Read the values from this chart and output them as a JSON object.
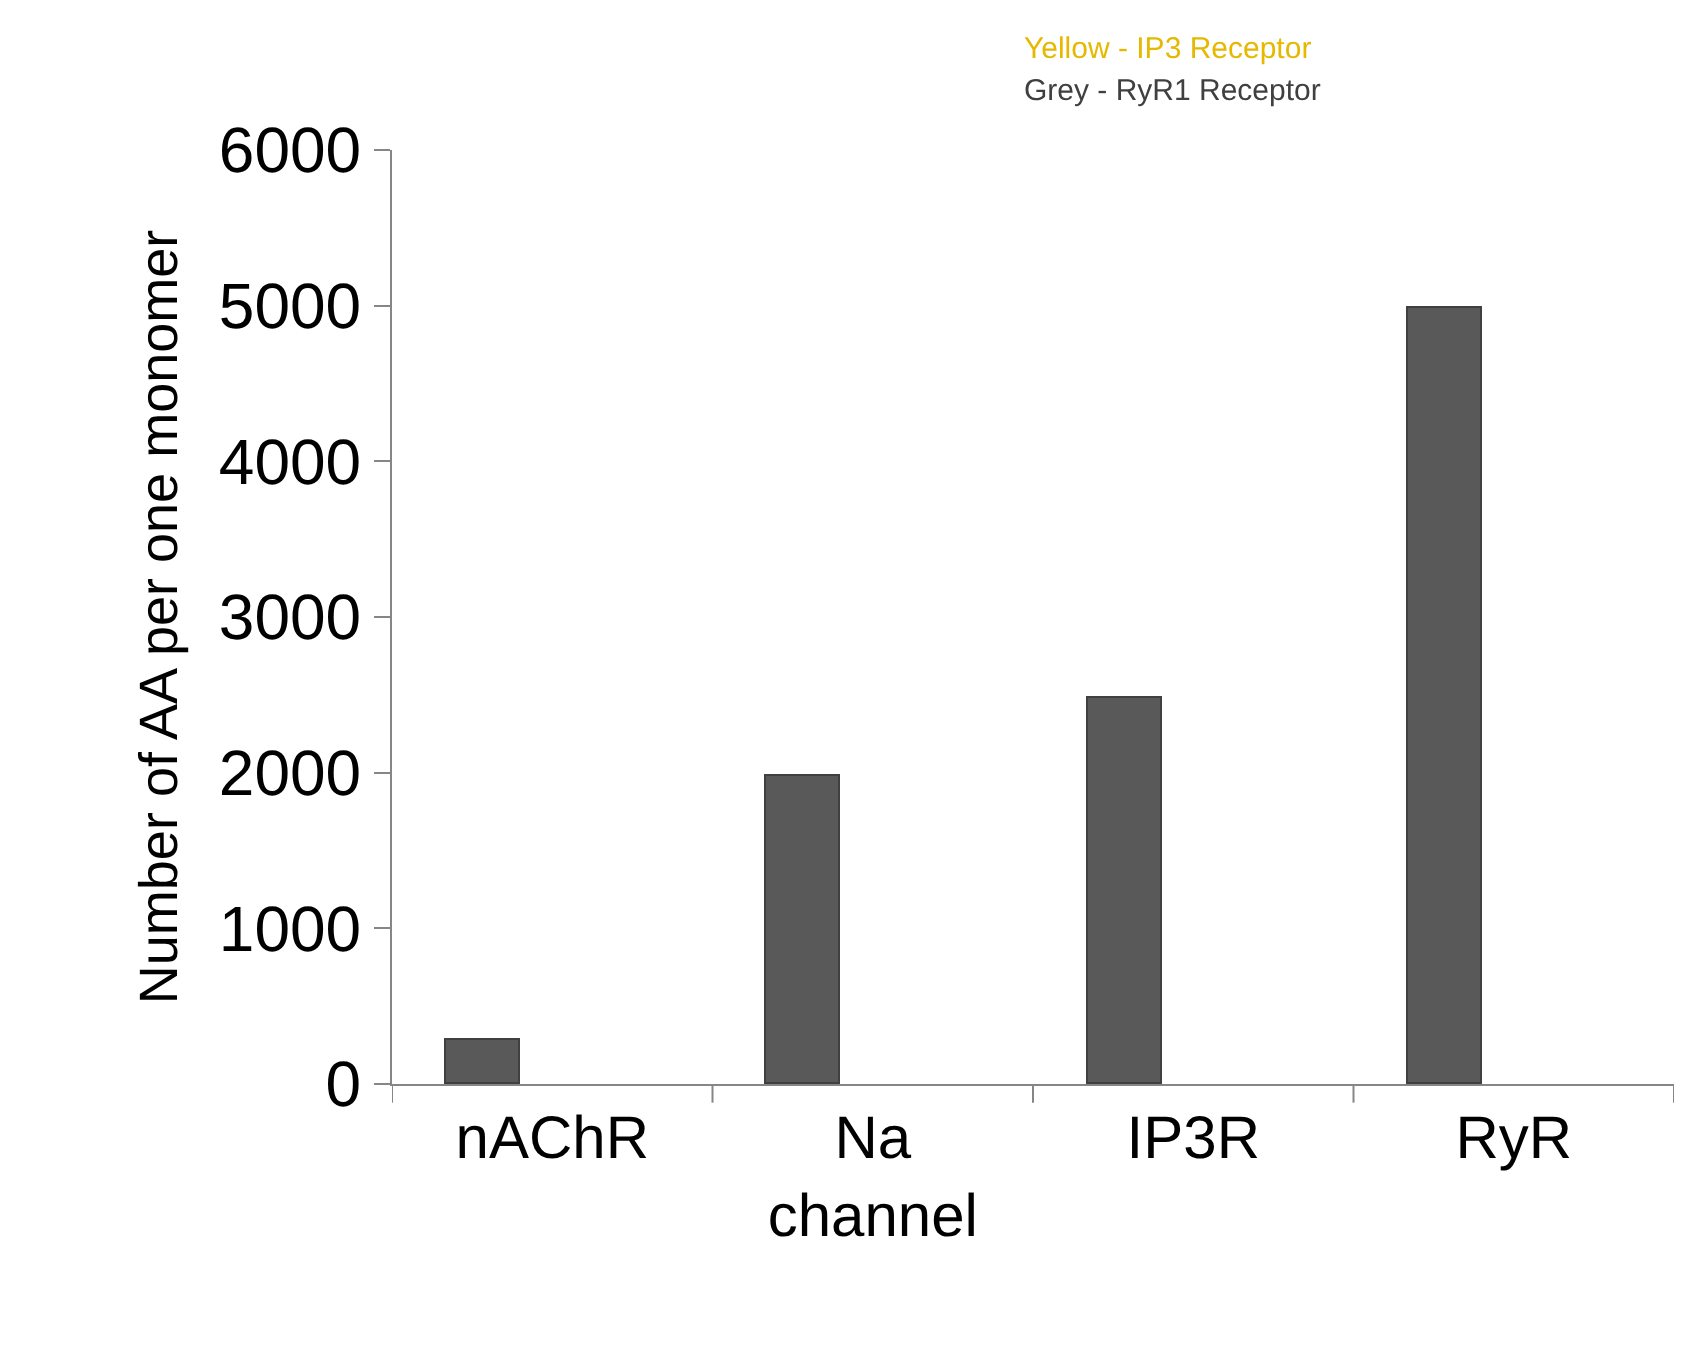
{
  "chart_data": {
    "type": "bar",
    "ylabel": "Number of AA per one monomer",
    "categories": [
      "nAChR",
      "Na channel",
      "IP3R",
      "RyR"
    ],
    "values": [
      280,
      1980,
      2480,
      4980
    ],
    "color": "#595959",
    "ylim": [
      0,
      6000
    ],
    "yticks": [
      0,
      1000,
      2000,
      3000,
      4000,
      5000,
      6000
    ],
    "legend": false,
    "annotations": [
      "Yellow - IP3 Receptor",
      "Grey - RyR1 Receptor"
    ]
  }
}
